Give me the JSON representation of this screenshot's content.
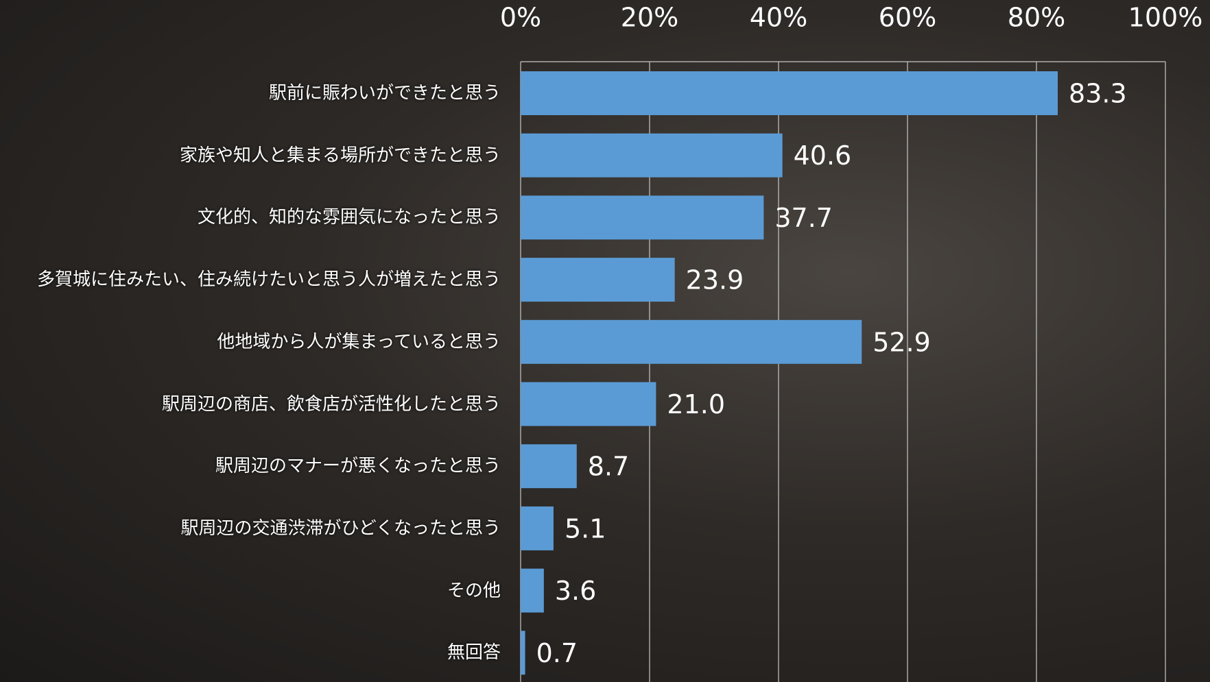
{
  "chart_data": {
    "type": "bar",
    "orientation": "horizontal",
    "categories": [
      "駅前に賑わいができたと思う",
      "家族や知人と集まる場所ができたと思う",
      "文化的、知的な雰囲気になったと思う",
      "多賀城に住みたい、住み続けたいと思う人が増えたと思う",
      "他地域から人が集まっていると思う",
      "駅周辺の商店、飲食店が活性化したと思う",
      "駅周辺のマナーが悪くなったと思う",
      "駅周辺の交通渋滞がひどくなったと思う",
      "その他",
      "無回答"
    ],
    "values": [
      83.3,
      40.6,
      37.7,
      23.9,
      52.9,
      21.0,
      8.7,
      5.1,
      3.6,
      0.7
    ],
    "value_labels": [
      "83.3",
      "40.6",
      "37.7",
      "23.9",
      "52.9",
      "21.0",
      "8.7",
      "5.1",
      "3.6",
      "0.7"
    ],
    "color": "#5b9bd5",
    "xlim": [
      0,
      100
    ],
    "xticks": [
      {
        "value": 0,
        "label": "0%"
      },
      {
        "value": 20,
        "label": "20%"
      },
      {
        "value": 40,
        "label": "40%"
      },
      {
        "value": 60,
        "label": "60%"
      },
      {
        "value": 80,
        "label": "80%"
      },
      {
        "value": 100,
        "label": "100%"
      }
    ],
    "grid": true
  }
}
